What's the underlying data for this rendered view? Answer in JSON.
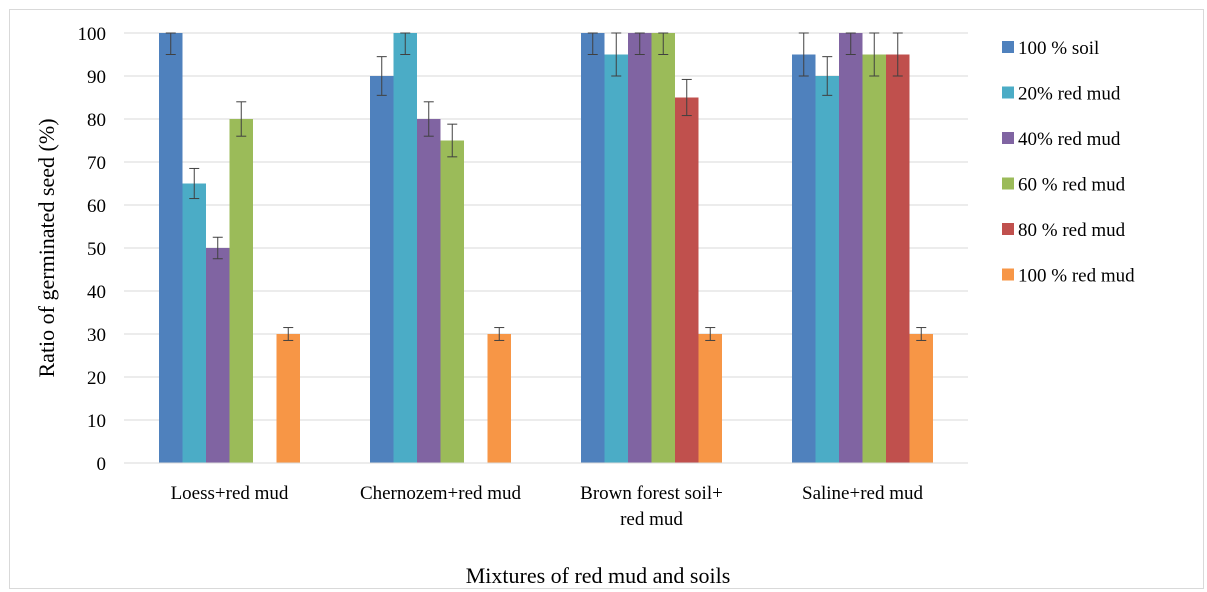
{
  "chart_data": {
    "type": "bar",
    "title": "",
    "xlabel": "Mixtures of red mud and soils",
    "ylabel": "Ratio of germinated  seed  (%)",
    "ylim": [
      0,
      100
    ],
    "yticks": [
      0,
      10,
      20,
      30,
      40,
      50,
      60,
      70,
      80,
      90,
      100
    ],
    "grid": true,
    "legend_position": "right",
    "categories": [
      [
        "Loess+red mud"
      ],
      [
        "Chernozem+red mud"
      ],
      [
        "Brown forest soil+",
        "red mud"
      ],
      [
        "Saline+red mud"
      ]
    ],
    "series": [
      {
        "name": "100 % soil",
        "color": "#4F81BD",
        "values": [
          100,
          90,
          100,
          95
        ],
        "errors": [
          5,
          4.5,
          5,
          5
        ]
      },
      {
        "name": "20% red mud",
        "color": "#4BACC6",
        "values": [
          65,
          100,
          95,
          90
        ],
        "errors": [
          3.5,
          5,
          5,
          4.5
        ]
      },
      {
        "name": "40% red mud",
        "color": "#8064A2",
        "values": [
          50,
          80,
          100,
          100
        ],
        "errors": [
          2.5,
          4,
          5,
          5
        ]
      },
      {
        "name": "60 % red mud",
        "color": "#9BBB59",
        "values": [
          80,
          75,
          100,
          95
        ],
        "errors": [
          4,
          3.8,
          5,
          5
        ]
      },
      {
        "name": "80 % red mud",
        "color": "#C0504D",
        "values": [
          0,
          0,
          85,
          95
        ],
        "errors": [
          0,
          0,
          4.2,
          5
        ]
      },
      {
        "name": "100 % red mud",
        "color": "#F79646",
        "values": [
          30,
          30,
          30,
          30
        ],
        "errors": [
          1.5,
          1.5,
          1.5,
          1.5
        ]
      }
    ]
  }
}
